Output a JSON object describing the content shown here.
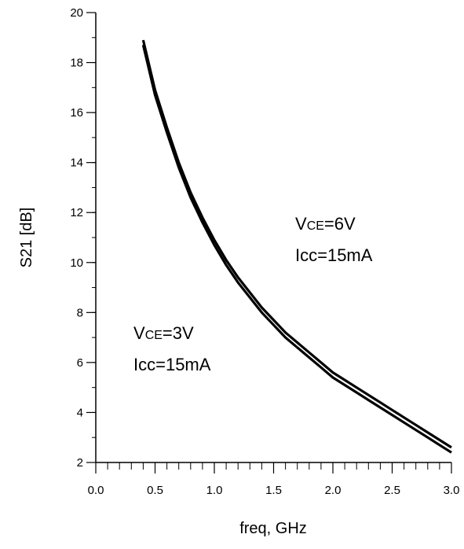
{
  "chart_data": {
    "type": "line",
    "xlabel": "freq, GHz",
    "ylabel": "S21 [dB]",
    "xlim": [
      0.0,
      3.0
    ],
    "ylim": [
      2,
      20
    ],
    "x_ticks": [
      "0.0",
      "0.5",
      "1.0",
      "1.5",
      "2.0",
      "2.5",
      "3.0"
    ],
    "y_ticks": [
      "2",
      "4",
      "6",
      "8",
      "10",
      "12",
      "14",
      "16",
      "18",
      "20"
    ],
    "x_minor_step": 0.1,
    "y_minor_step": 1,
    "grid": false,
    "line_color": "#000000",
    "series": [
      {
        "x": [
          0.4,
          0.5,
          0.6,
          0.7,
          0.8,
          0.9,
          1.0,
          1.1,
          1.2,
          1.3,
          1.4,
          1.5,
          1.6,
          1.7,
          1.8,
          1.9,
          2.0,
          2.1,
          2.2,
          2.3,
          2.4,
          2.5,
          2.6,
          2.7,
          2.8,
          2.9,
          3.0
        ],
        "y": [
          18.9,
          16.9,
          15.4,
          14.0,
          12.8,
          11.8,
          10.9,
          10.1,
          9.4,
          8.8,
          8.2,
          7.7,
          7.2,
          6.8,
          6.4,
          6.0,
          5.6,
          5.3,
          5.0,
          4.7,
          4.4,
          4.1,
          3.8,
          3.5,
          3.2,
          2.9,
          2.6
        ]
      },
      {
        "x": [
          0.4,
          0.5,
          0.6,
          0.7,
          0.8,
          0.9,
          1.0,
          1.1,
          1.2,
          1.3,
          1.4,
          1.5,
          1.6,
          1.7,
          1.8,
          1.9,
          2.0,
          2.1,
          2.2,
          2.3,
          2.4,
          2.5,
          2.6,
          2.7,
          2.8,
          2.9,
          3.0
        ],
        "y": [
          18.7,
          16.7,
          15.2,
          13.8,
          12.6,
          11.6,
          10.7,
          9.9,
          9.2,
          8.6,
          8.0,
          7.5,
          7.0,
          6.6,
          6.2,
          5.8,
          5.4,
          5.1,
          4.8,
          4.5,
          4.2,
          3.9,
          3.6,
          3.3,
          3.0,
          2.7,
          2.4
        ]
      }
    ],
    "annotations": [
      {
        "label_main": "V",
        "label_sub": "CE",
        "label_rest": "=6V",
        "line2": "Icc=15mA"
      },
      {
        "label_main": "V",
        "label_sub": "CE",
        "label_rest": "=3V",
        "line2": "Icc=15mA"
      }
    ]
  }
}
